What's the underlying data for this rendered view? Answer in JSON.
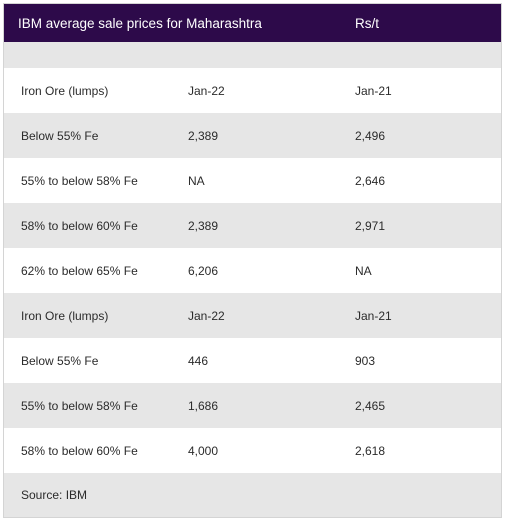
{
  "header": {
    "title": "IBM average sale prices for Maharashtra",
    "unit": "Rs/t"
  },
  "rows": [
    {
      "label": "Iron Ore (lumps)",
      "col2": "Jan-22",
      "col3": "Jan-21"
    },
    {
      "label": "Below 55% Fe",
      "col2": "2,389",
      "col3": "2,496"
    },
    {
      "label": "55% to below 58% Fe",
      "col2": "NA",
      "col3": "2,646"
    },
    {
      "label": "58% to below 60% Fe",
      "col2": "2,389",
      "col3": "2,971"
    },
    {
      "label": "62% to below 65% Fe",
      "col2": "6,206",
      "col3": "NA"
    },
    {
      "label": "Iron Ore (lumps)",
      "col2": "Jan-22",
      "col3": "Jan-21"
    },
    {
      "label": "Below 55% Fe",
      "col2": "446",
      "col3": "903"
    },
    {
      "label": "55% to below 58% Fe",
      "col2": "1,686",
      "col3": "2,465"
    },
    {
      "label": "58% to below 60% Fe",
      "col2": "4,000",
      "col3": "2,618"
    }
  ],
  "footer": {
    "source": "Source: IBM"
  },
  "colors": {
    "header_bg": "#2d0a4a",
    "stripe": "#e6e6e6"
  }
}
